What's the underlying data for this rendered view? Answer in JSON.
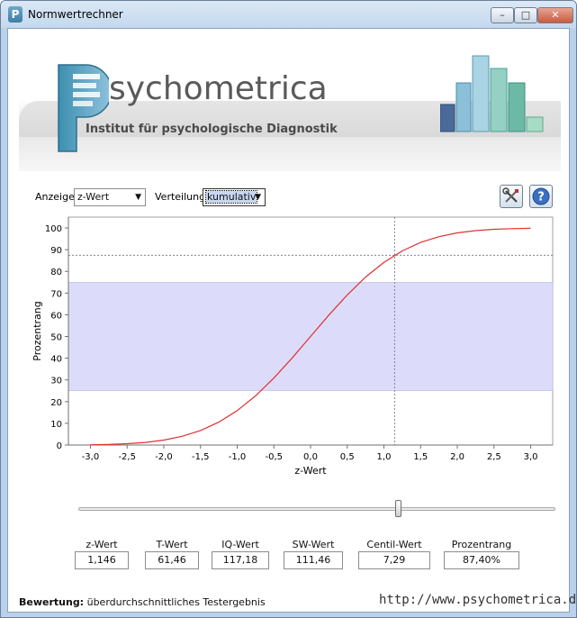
{
  "window": {
    "title": "Normwertrechner",
    "app_icon": "P",
    "controls": {
      "minimize": "–",
      "maximize": "□",
      "close": "✕"
    }
  },
  "banner": {
    "brand_rest": "sychometrica",
    "subtitle": "Institut für psychologische Diagnostik"
  },
  "controls": {
    "anzeige_label": "Anzeige",
    "anzeige_value": "z-Wert",
    "verteilung_label": "Verteilung",
    "verteilung_value": "kumulativ",
    "tools_icon": "tools-icon",
    "help_icon": "help-icon"
  },
  "chart_data": {
    "type": "line",
    "xlabel": "z-Wert",
    "ylabel": "Prozentrang",
    "xlim": [
      -3.3,
      3.3
    ],
    "ylim": [
      0,
      105
    ],
    "xticks": [
      -3.0,
      -2.5,
      -2.0,
      -1.5,
      -1.0,
      -0.5,
      0.0,
      0.5,
      1.0,
      1.5,
      2.0,
      2.5,
      3.0
    ],
    "xtick_labels": [
      "-3,0",
      "-2,5",
      "-2,0",
      "-1,5",
      "-1,0",
      "-0,5",
      "0,0",
      "0,5",
      "1,0",
      "1,5",
      "2,0",
      "2,5",
      "3,0"
    ],
    "yticks": [
      0,
      10,
      20,
      30,
      40,
      50,
      60,
      70,
      80,
      90,
      100
    ],
    "ytick_labels": [
      "0",
      "10",
      "20",
      "30",
      "40",
      "50",
      "60",
      "70",
      "80",
      "90",
      "100"
    ],
    "band": [
      25,
      75
    ],
    "marker": {
      "x": 1.146,
      "y": 87.4
    },
    "series": [
      {
        "x": [
          -3.0,
          -2.75,
          -2.5,
          -2.25,
          -2.0,
          -1.75,
          -1.5,
          -1.25,
          -1.0,
          -0.75,
          -0.5,
          -0.25,
          0.0,
          0.25,
          0.5,
          0.75,
          1.0,
          1.25,
          1.5,
          1.75,
          2.0,
          2.25,
          2.5,
          2.75,
          3.0
        ],
        "y": [
          0.13,
          0.3,
          0.62,
          1.22,
          2.28,
          4.01,
          6.68,
          10.56,
          15.87,
          22.66,
          30.85,
          40.13,
          50.0,
          59.87,
          69.15,
          77.34,
          84.13,
          89.44,
          93.32,
          95.99,
          97.72,
          98.78,
          99.38,
          99.7,
          99.87
        ]
      }
    ],
    "colors": {
      "line": "#e03030",
      "band": "#dcdcfa",
      "grid": "#8080a0"
    },
    "grid": false
  },
  "slider": {
    "value": 1.146,
    "min": -3.3,
    "max": 3.3
  },
  "results": [
    {
      "label": "z-Wert",
      "value": "1,146"
    },
    {
      "label": "T-Wert",
      "value": "61,46"
    },
    {
      "label": "IQ-Wert",
      "value": "117,18"
    },
    {
      "label": "SW-Wert",
      "value": "111,46"
    },
    {
      "label": "Centil-Wert",
      "value": "7,29"
    },
    {
      "label": "Prozentrang",
      "value": "87,40%"
    }
  ],
  "rating": {
    "label": "Bewertung:",
    "value": "überdurchschnittliches Testergebnis"
  },
  "footer_url": "http://www.psychometrica.de"
}
